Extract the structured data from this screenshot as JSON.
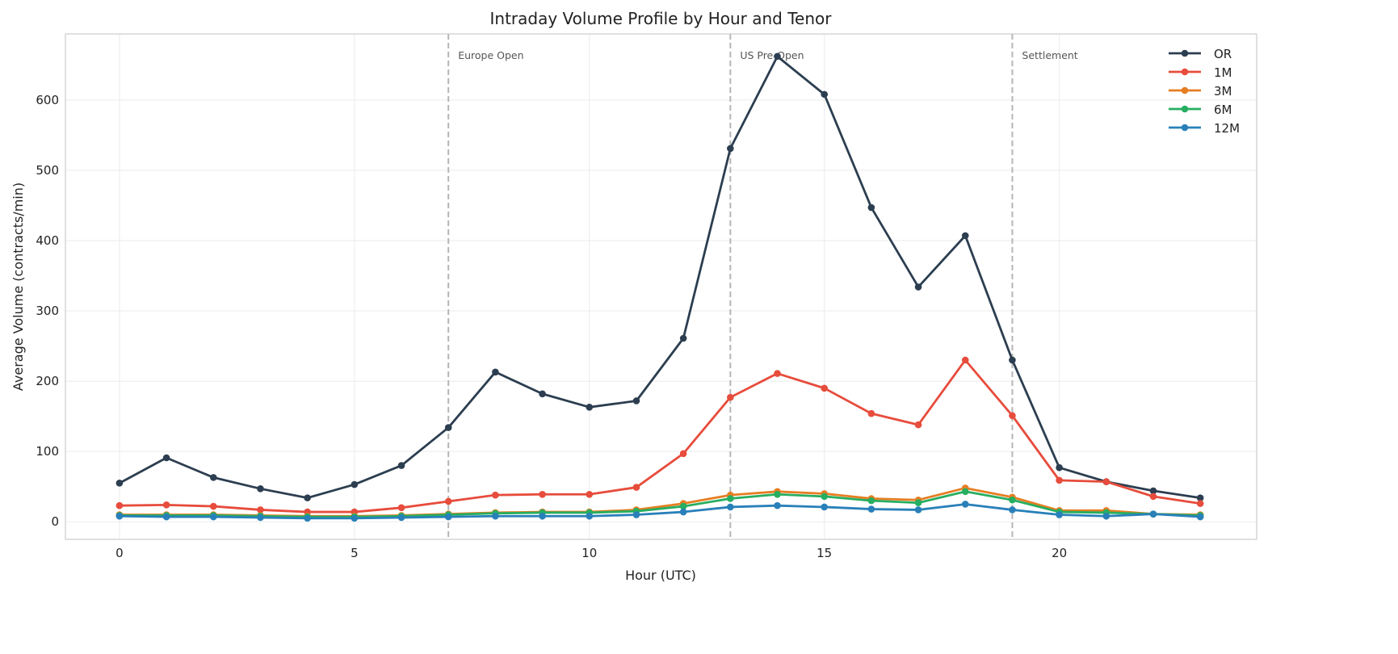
{
  "chart_data": {
    "type": "line",
    "title": "Intraday Volume Profile by Hour and Tenor",
    "xlabel": "Hour (UTC)",
    "ylabel": "Average Volume (contracts/min)",
    "xlim": [
      -1.15,
      24.2
    ],
    "ylim": [
      -25,
      694
    ],
    "xticks": [
      0,
      5,
      10,
      15,
      20
    ],
    "yticks": [
      0,
      100,
      200,
      300,
      400,
      500,
      600
    ],
    "grid": true,
    "legend_placement": "top-right",
    "x": [
      0,
      1,
      2,
      3,
      4,
      5,
      6,
      7,
      8,
      9,
      10,
      11,
      12,
      13,
      14,
      15,
      16,
      17,
      18,
      19,
      20,
      21,
      22,
      23
    ],
    "series": [
      {
        "name": "OR",
        "color": "#2c3e50",
        "values": [
          55,
          91,
          63,
          47,
          34,
          53,
          80,
          134,
          213,
          182,
          163,
          172,
          261,
          531,
          662,
          608,
          447,
          334,
          407,
          230,
          77,
          57,
          44,
          34
        ]
      },
      {
        "name": "1M",
        "color": "#e74c3c",
        "values": [
          23,
          24,
          22,
          17,
          14,
          14,
          20,
          29,
          38,
          39,
          39,
          49,
          97,
          177,
          211,
          190,
          154,
          138,
          230,
          151,
          59,
          57,
          36,
          26
        ]
      },
      {
        "name": "3M",
        "color": "#e67e22",
        "values": [
          10,
          10,
          10,
          9,
          8,
          8,
          9,
          11,
          13,
          14,
          14,
          17,
          26,
          38,
          43,
          40,
          33,
          31,
          48,
          35,
          16,
          16,
          11,
          10
        ]
      },
      {
        "name": "6M",
        "color": "#27ae60",
        "values": [
          9,
          9,
          9,
          8,
          7,
          7,
          8,
          10,
          12,
          13,
          13,
          15,
          22,
          33,
          39,
          36,
          30,
          27,
          43,
          31,
          14,
          13,
          11,
          9
        ]
      },
      {
        "name": "12M",
        "color": "#2980b9",
        "values": [
          8,
          7,
          7,
          6,
          5,
          5,
          6,
          7,
          8,
          8,
          8,
          10,
          14,
          21,
          23,
          21,
          18,
          17,
          25,
          17,
          10,
          8,
          11,
          7
        ]
      }
    ],
    "annotations": [
      {
        "x": 7,
        "label": "Europe Open"
      },
      {
        "x": 13,
        "label": "US Pre-Open"
      },
      {
        "x": 19,
        "label": "Settlement"
      }
    ]
  }
}
